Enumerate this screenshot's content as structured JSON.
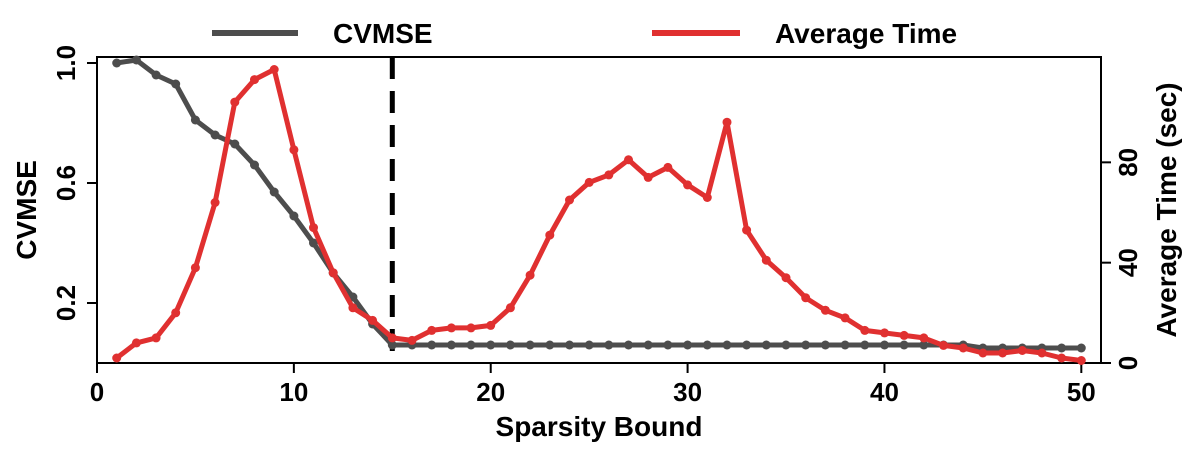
{
  "chart_data": {
    "type": "line",
    "xlabel": "Sparsity Bound",
    "ylabel_left": "CVMSE",
    "ylabel_right": "Average Time (sec)",
    "xlim": [
      0,
      51
    ],
    "ylim_left": [
      0.0,
      1.02
    ],
    "ylim_right": [
      0,
      122
    ],
    "x_ticks": [
      0,
      10,
      20,
      30,
      40,
      50
    ],
    "y_ticks_left": [
      0.2,
      0.6,
      1.0
    ],
    "y_ticks_right": [
      0,
      40,
      80
    ],
    "threshold_x": 15,
    "legend_position": "top",
    "x": [
      1,
      2,
      3,
      4,
      5,
      6,
      7,
      8,
      9,
      10,
      11,
      12,
      13,
      14,
      15,
      16,
      17,
      18,
      19,
      20,
      21,
      22,
      23,
      24,
      25,
      26,
      27,
      28,
      29,
      30,
      31,
      32,
      33,
      34,
      35,
      36,
      37,
      38,
      39,
      40,
      41,
      42,
      43,
      44,
      45,
      46,
      47,
      48,
      49,
      50
    ],
    "series": [
      {
        "name": "CVMSE",
        "axis": "left",
        "color": "#4d4d4d",
        "values": [
          1.0,
          1.01,
          0.96,
          0.93,
          0.81,
          0.76,
          0.73,
          0.66,
          0.57,
          0.49,
          0.4,
          0.3,
          0.22,
          0.13,
          0.06,
          0.06,
          0.06,
          0.06,
          0.06,
          0.06,
          0.06,
          0.06,
          0.06,
          0.06,
          0.06,
          0.06,
          0.06,
          0.06,
          0.06,
          0.06,
          0.06,
          0.06,
          0.06,
          0.06,
          0.06,
          0.06,
          0.06,
          0.06,
          0.06,
          0.06,
          0.06,
          0.06,
          0.06,
          0.06,
          0.05,
          0.05,
          0.05,
          0.05,
          0.05,
          0.05
        ]
      },
      {
        "name": "Average Time",
        "axis": "right",
        "color": "#e03030",
        "values": [
          2,
          8,
          10,
          20,
          38,
          64,
          104,
          113,
          117,
          85,
          54,
          36,
          22,
          17,
          10,
          9,
          13,
          14,
          14,
          15,
          22,
          35,
          51,
          65,
          72,
          75,
          81,
          74,
          78,
          71,
          66,
          96,
          53,
          41,
          34,
          26,
          21,
          18,
          13,
          12,
          11,
          10,
          7,
          6,
          4,
          4,
          5,
          4,
          2,
          1
        ]
      }
    ]
  }
}
